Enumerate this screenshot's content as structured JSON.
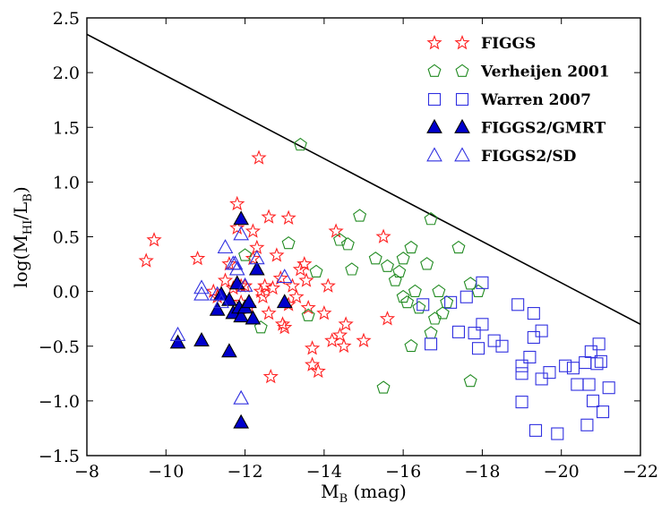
{
  "chart_data": {
    "type": "scatter",
    "title": "",
    "xlabel": "M",
    "xlabel_sub": "B",
    "xlabel_unit": " (mag)",
    "ylabel": "log(M",
    "ylabel_sub1": "HI",
    "ylabel_mid": "/L",
    "ylabel_sub2": "B",
    "ylabel_end": ")",
    "xlim": [
      -8,
      -22
    ],
    "ylim": [
      -1.5,
      2.5
    ],
    "x_ticks": [
      -8,
      -10,
      -12,
      -14,
      -16,
      -18,
      -20,
      -22
    ],
    "y_ticks": [
      -1.5,
      -1.0,
      -0.5,
      0.0,
      0.5,
      1.0,
      1.5,
      2.0,
      2.5
    ],
    "x_tick_labels": [
      "−8",
      "−10",
      "−12",
      "−14",
      "−16",
      "−18",
      "−20",
      "−22"
    ],
    "y_tick_labels": [
      "−1.5",
      "−1.0",
      "−0.5",
      "0.0",
      "0.5",
      "1.0",
      "1.5",
      "2.0",
      "2.5"
    ],
    "grid": false,
    "legend_position": "top-right",
    "line": {
      "x": [
        -8,
        -22
      ],
      "y": [
        2.35,
        -0.3
      ],
      "color": "#000000"
    },
    "series": [
      {
        "name": "FIGGS",
        "marker": "star",
        "color": "#ff2020",
        "filled": false,
        "points": [
          [
            -9.5,
            0.28
          ],
          [
            -9.7,
            0.47
          ],
          [
            -10.8,
            0.3
          ],
          [
            -11.2,
            0.0
          ],
          [
            -11.3,
            -0.05
          ],
          [
            -11.5,
            0.1
          ],
          [
            -11.6,
            0.25
          ],
          [
            -11.7,
            0.03
          ],
          [
            -11.8,
            0.58
          ],
          [
            -11.8,
            0.8
          ],
          [
            -11.9,
            -0.1
          ],
          [
            -12.0,
            0.05
          ],
          [
            -12.1,
            -0.15
          ],
          [
            -12.2,
            0.3
          ],
          [
            -12.3,
            0.4
          ],
          [
            -12.35,
            1.22
          ],
          [
            -12.4,
            0.0
          ],
          [
            -12.45,
            -0.05
          ],
          [
            -12.5,
            0.05
          ],
          [
            -12.6,
            0.68
          ],
          [
            -12.6,
            -0.2
          ],
          [
            -12.65,
            -0.78
          ],
          [
            -12.7,
            0.03
          ],
          [
            -12.8,
            0.33
          ],
          [
            -12.9,
            0.12
          ],
          [
            -12.95,
            -0.3
          ],
          [
            -13.0,
            -0.33
          ],
          [
            -13.1,
            0.67
          ],
          [
            -13.2,
            0.05
          ],
          [
            -13.3,
            -0.05
          ],
          [
            -13.4,
            0.2
          ],
          [
            -13.5,
            0.25
          ],
          [
            -13.55,
            0.1
          ],
          [
            -13.6,
            -0.15
          ],
          [
            -13.7,
            -0.52
          ],
          [
            -13.7,
            -0.67
          ],
          [
            -13.85,
            -0.73
          ],
          [
            -14.0,
            -0.2
          ],
          [
            -14.1,
            0.05
          ],
          [
            -14.2,
            -0.45
          ],
          [
            -14.3,
            0.55
          ],
          [
            -14.4,
            -0.4
          ],
          [
            -14.5,
            -0.5
          ],
          [
            -14.55,
            -0.3
          ],
          [
            -15.0,
            -0.45
          ],
          [
            -15.5,
            0.5
          ],
          [
            -15.6,
            -0.25
          ],
          [
            -13.1,
            -0.12
          ],
          [
            -12.2,
            0.55
          ],
          [
            -11.9,
            0.05
          ]
        ]
      },
      {
        "name": "Verheijen 2001",
        "marker": "pentagon",
        "color": "#228b22",
        "filled": false,
        "points": [
          [
            -12.0,
            0.33
          ],
          [
            -12.4,
            -0.33
          ],
          [
            -13.1,
            0.44
          ],
          [
            -13.4,
            1.34
          ],
          [
            -13.6,
            -0.22
          ],
          [
            -13.8,
            0.18
          ],
          [
            -14.4,
            0.47
          ],
          [
            -14.6,
            0.43
          ],
          [
            -14.7,
            0.2
          ],
          [
            -14.9,
            0.69
          ],
          [
            -15.3,
            0.3
          ],
          [
            -15.6,
            0.23
          ],
          [
            -15.8,
            0.1
          ],
          [
            -15.9,
            0.18
          ],
          [
            -16.0,
            0.3
          ],
          [
            -16.1,
            -0.1
          ],
          [
            -16.2,
            0.4
          ],
          [
            -16.3,
            0.0
          ],
          [
            -16.4,
            -0.15
          ],
          [
            -16.6,
            0.25
          ],
          [
            -16.7,
            0.66
          ],
          [
            -16.8,
            -0.25
          ],
          [
            -16.9,
            0.0
          ],
          [
            -17.0,
            -0.2
          ],
          [
            -17.1,
            -0.1
          ],
          [
            -17.4,
            0.4
          ],
          [
            -17.7,
            0.07
          ],
          [
            -17.9,
            0.0
          ],
          [
            -15.5,
            -0.88
          ],
          [
            -16.2,
            -0.5
          ],
          [
            -17.7,
            -0.82
          ],
          [
            -16.7,
            -0.38
          ],
          [
            -16.0,
            -0.05
          ]
        ]
      },
      {
        "name": "Warren 2007",
        "marker": "square",
        "color": "#3030e0",
        "filled": false,
        "points": [
          [
            -16.5,
            -0.12
          ],
          [
            -16.7,
            -0.48
          ],
          [
            -17.2,
            -0.1
          ],
          [
            -17.4,
            -0.37
          ],
          [
            -17.6,
            -0.05
          ],
          [
            -17.8,
            -0.38
          ],
          [
            -17.9,
            -0.52
          ],
          [
            -18.0,
            -0.3
          ],
          [
            -18.0,
            0.08
          ],
          [
            -18.3,
            -0.45
          ],
          [
            -18.5,
            -0.5
          ],
          [
            -18.9,
            -0.12
          ],
          [
            -19.0,
            -0.68
          ],
          [
            -19.0,
            -0.75
          ],
          [
            -19.0,
            -1.01
          ],
          [
            -19.2,
            -0.6
          ],
          [
            -19.3,
            -0.2
          ],
          [
            -19.3,
            -0.42
          ],
          [
            -19.35,
            -1.27
          ],
          [
            -19.5,
            -0.8
          ],
          [
            -19.5,
            -0.36
          ],
          [
            -19.7,
            -0.74
          ],
          [
            -19.9,
            -1.3
          ],
          [
            -20.1,
            -0.68
          ],
          [
            -20.3,
            -0.7
          ],
          [
            -20.4,
            -0.85
          ],
          [
            -20.6,
            -0.65
          ],
          [
            -20.65,
            -1.22
          ],
          [
            -20.7,
            -0.85
          ],
          [
            -20.75,
            -0.55
          ],
          [
            -20.8,
            -1.0
          ],
          [
            -20.9,
            -0.66
          ],
          [
            -20.95,
            -0.48
          ],
          [
            -21.0,
            -0.64
          ],
          [
            -21.05,
            -1.1
          ],
          [
            -21.2,
            -0.88
          ]
        ]
      },
      {
        "name": "FIGGS2/GMRT",
        "marker": "triangle",
        "color": "#0000cc",
        "filled": true,
        "points": [
          [
            -10.3,
            -0.47
          ],
          [
            -10.9,
            -0.45
          ],
          [
            -11.3,
            -0.17
          ],
          [
            -11.4,
            -0.03
          ],
          [
            -11.6,
            -0.08
          ],
          [
            -11.6,
            -0.55
          ],
          [
            -11.7,
            -0.2
          ],
          [
            -11.8,
            0.07
          ],
          [
            -11.85,
            -0.15
          ],
          [
            -11.9,
            -0.23
          ],
          [
            -11.9,
            0.66
          ],
          [
            -11.9,
            -1.2
          ],
          [
            -12.0,
            -0.15
          ],
          [
            -12.1,
            -0.1
          ],
          [
            -12.2,
            -0.25
          ],
          [
            -12.3,
            0.2
          ],
          [
            -13.0,
            -0.1
          ]
        ]
      },
      {
        "name": "FIGGS2/SD",
        "marker": "triangle",
        "color": "#3030e0",
        "filled": false,
        "points": [
          [
            -10.3,
            -0.4
          ],
          [
            -10.9,
            0.03
          ],
          [
            -10.9,
            -0.03
          ],
          [
            -11.3,
            -0.03
          ],
          [
            -11.4,
            -0.1
          ],
          [
            -11.5,
            0.4
          ],
          [
            -11.7,
            0.25
          ],
          [
            -11.75,
            0.25
          ],
          [
            -11.8,
            0.2
          ],
          [
            -11.9,
            0.52
          ],
          [
            -11.9,
            -0.98
          ],
          [
            -12.0,
            0.05
          ],
          [
            -12.3,
            0.3
          ],
          [
            -13.0,
            0.13
          ]
        ]
      }
    ]
  }
}
